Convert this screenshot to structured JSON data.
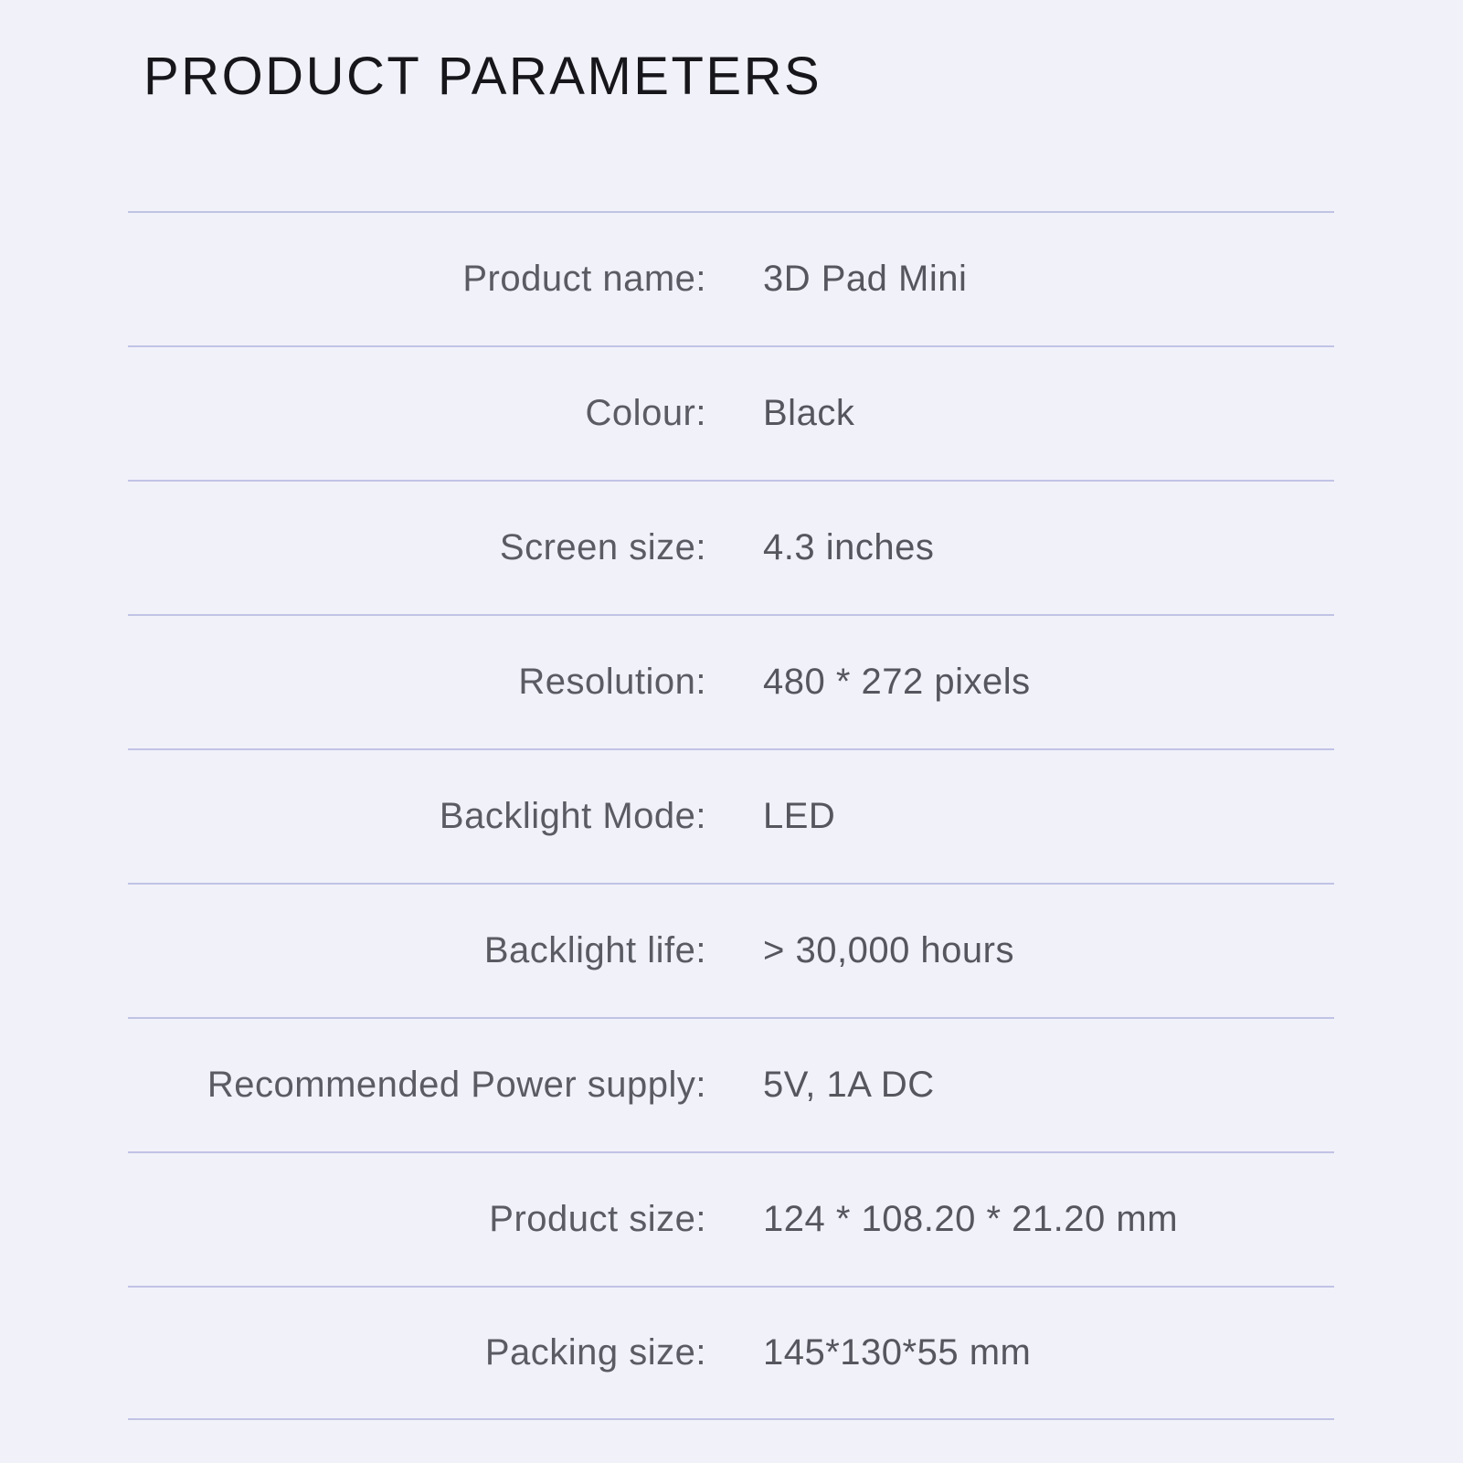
{
  "header": {
    "title": "PRODUCT PARAMETERS"
  },
  "spec_table": {
    "rows": [
      {
        "label": "Product name:",
        "value": "3D Pad Mini"
      },
      {
        "label": "Colour:",
        "value": "Black"
      },
      {
        "label": "Screen size:",
        "value": "4.3 inches"
      },
      {
        "label": "Resolution:",
        "value": "480 * 272 pixels"
      },
      {
        "label": "Backlight Mode:",
        "value": "LED"
      },
      {
        "label": "Backlight life:",
        "value": "> 30,000 hours"
      },
      {
        "label": "Recommended Power supply:",
        "value": "5V, 1A DC"
      },
      {
        "label": "Product size:",
        "value": "124 * 108.20 * 21.20 mm"
      },
      {
        "label": "Packing size:",
        "value": "145*130*55 mm"
      }
    ]
  },
  "colors": {
    "background": "#f1f1f9",
    "divider": "#c1c3e5",
    "title_text": "#17171b",
    "label_text": "#5a5b63",
    "value_text": "#55565e"
  }
}
